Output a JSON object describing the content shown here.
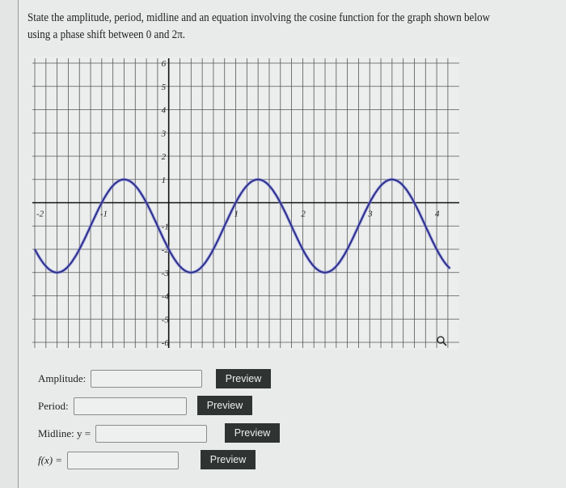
{
  "question": {
    "line1": "State the amplitude, period, midline and an equation involving the cosine function for the graph shown below",
    "line2": "using a phase shift between 0 and 2π."
  },
  "chart_data": {
    "type": "line",
    "xlim": [
      -2,
      4
    ],
    "ylim": [
      -6,
      6
    ],
    "x_ticks": [
      "-2",
      "-1",
      "1",
      "2",
      "3",
      "4"
    ],
    "y_ticks": [
      "6",
      "5",
      "4",
      "3",
      "2",
      "1",
      "-1",
      "-2",
      "-3",
      "-4",
      "-5",
      "-6"
    ],
    "grid": true,
    "grid_x_step": 0.1667,
    "grid_y_step": 1,
    "curve": {
      "function": "2cos(π(x - 4/3)) - 1",
      "max": 1,
      "min": -3,
      "peaks_x": [
        -0.667,
        1.333,
        3.333
      ],
      "troughs_x": [
        -1.667,
        0.333,
        2.333
      ]
    },
    "curve_color": "#2b2f8a",
    "zoom_icon": "magnifier-icon"
  },
  "form": {
    "amplitude_label": "Amplitude:",
    "period_label": "Period:",
    "midline_label": "Midline: y =",
    "fx_label": "f(x) =",
    "preview_label": "Preview",
    "amplitude_value": "",
    "period_value": "",
    "midline_value": "",
    "fx_value": ""
  }
}
